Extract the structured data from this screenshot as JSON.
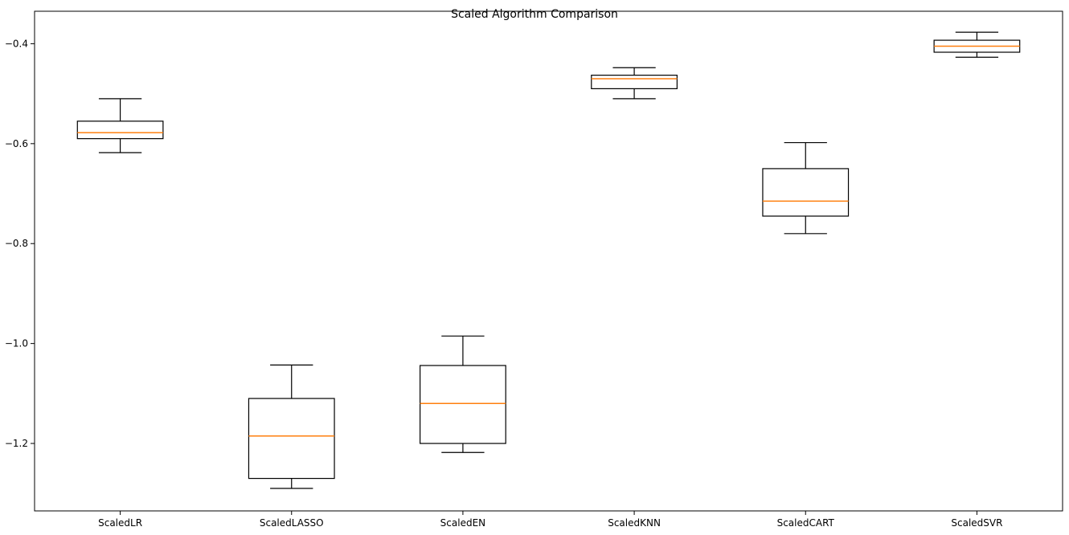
{
  "chart_data": {
    "type": "boxplot",
    "title": "Scaled Algorithm Comparison",
    "xlabel": "",
    "ylabel": "",
    "ylim": [
      -1.335,
      -0.335
    ],
    "yticks": [
      -0.4,
      -0.6,
      -0.8,
      -1.0,
      -1.2
    ],
    "ytick_labels": [
      "−0.4",
      "−0.6",
      "−0.8",
      "−1.0",
      "−1.2"
    ],
    "grid": false,
    "categories": [
      "ScaledLR",
      "ScaledLASSO",
      "ScaledEN",
      "ScaledKNN",
      "ScaledCART",
      "ScaledSVR"
    ],
    "boxes": [
      {
        "whisker_low": -0.618,
        "q1": -0.59,
        "median": -0.578,
        "q3": -0.555,
        "whisker_high": -0.51
      },
      {
        "whisker_low": -1.29,
        "q1": -1.27,
        "median": -1.185,
        "q3": -1.11,
        "whisker_high": -1.043
      },
      {
        "whisker_low": -1.218,
        "q1": -1.2,
        "median": -1.12,
        "q3": -1.044,
        "whisker_high": -0.985
      },
      {
        "whisker_low": -0.51,
        "q1": -0.49,
        "median": -0.47,
        "q3": -0.463,
        "whisker_high": -0.448
      },
      {
        "whisker_low": -0.78,
        "q1": -0.745,
        "median": -0.715,
        "q3": -0.65,
        "whisker_high": -0.598
      },
      {
        "whisker_low": -0.427,
        "q1": -0.417,
        "median": -0.405,
        "q3": -0.393,
        "whisker_high": -0.377
      }
    ],
    "colors": {
      "box": "#000000",
      "median": "#ff7f0e",
      "axes": "#000000"
    }
  }
}
